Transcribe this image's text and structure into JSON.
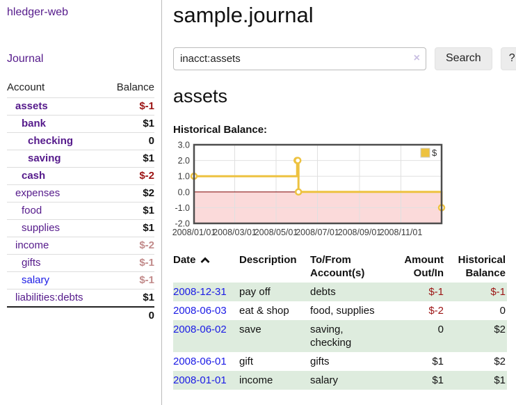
{
  "sidebar": {
    "brand": "hledger-web",
    "nav": {
      "journal_label": "Journal"
    },
    "accounts_table": {
      "headers": {
        "account": "Account",
        "balance": "Balance"
      },
      "rows": [
        {
          "name": "assets",
          "balance": "$-1",
          "level": 1,
          "bold": true,
          "balance_style": "neg"
        },
        {
          "name": "bank",
          "balance": "$1",
          "level": 2,
          "bold": true,
          "balance_style": "pos"
        },
        {
          "name": "checking",
          "balance": "0",
          "level": 3,
          "bold": true,
          "balance_style": "pos"
        },
        {
          "name": "saving",
          "balance": "$1",
          "level": 3,
          "bold": true,
          "balance_style": "pos"
        },
        {
          "name": "cash",
          "balance": "$-2",
          "level": 2,
          "bold": true,
          "balance_style": "neg"
        },
        {
          "name": "expenses",
          "balance": "$2",
          "level": 1,
          "bold": false,
          "balance_style": "pos"
        },
        {
          "name": "food",
          "balance": "$1",
          "level": 2,
          "bold": false,
          "balance_style": "pos"
        },
        {
          "name": "supplies",
          "balance": "$1",
          "level": 2,
          "bold": false,
          "balance_style": "pos"
        },
        {
          "name": "income",
          "balance": "$-2",
          "level": 1,
          "bold": false,
          "balance_style": "faded-neg"
        },
        {
          "name": "gifts",
          "balance": "$-1",
          "level": 2,
          "bold": false,
          "balance_style": "faded-neg"
        },
        {
          "name": "salary",
          "balance": "$-1",
          "level": 2,
          "bold": false,
          "balance_style": "faded-neg",
          "link_color": "blue"
        },
        {
          "name": "liabilities:debts",
          "balance": "$1",
          "level": 1,
          "bold": false,
          "balance_style": "pos"
        }
      ],
      "total": "0"
    }
  },
  "header": {
    "title": "sample.journal"
  },
  "search": {
    "query": "inacct:assets",
    "clear_icon": "×",
    "search_button_label": "Search",
    "help_button_label": "?"
  },
  "account_page": {
    "heading": "assets",
    "chart_label": "Historical Balance:"
  },
  "register": {
    "headers": {
      "date": "Date",
      "description": "Description",
      "accounts": "To/From Account(s)",
      "amount": "Amount Out/In",
      "balance": "Historical Balance"
    },
    "rows": [
      {
        "date": "2008-12-31",
        "description": "pay off",
        "accounts": "debts",
        "amount": "$-1",
        "amount_negative": true,
        "balance": "$-1",
        "balance_negative": true
      },
      {
        "date": "2008-06-03",
        "description": "eat & shop",
        "accounts": "food, supplies",
        "amount": "$-2",
        "amount_negative": true,
        "balance": "0",
        "balance_negative": false
      },
      {
        "date": "2008-06-02",
        "description": "save",
        "accounts": "saving, checking",
        "amount": "0",
        "amount_negative": false,
        "balance": "$2",
        "balance_negative": false
      },
      {
        "date": "2008-06-01",
        "description": "gift",
        "accounts": "gifts",
        "amount": "$1",
        "amount_negative": false,
        "balance": "$2",
        "balance_negative": false
      },
      {
        "date": "2008-01-01",
        "description": "income",
        "accounts": "salary",
        "amount": "$1",
        "amount_negative": false,
        "balance": "$1",
        "balance_negative": false
      }
    ]
  },
  "chart_data": {
    "type": "line",
    "title": "Historical Balance:",
    "step": true,
    "xlim_days": [
      0,
      365
    ],
    "ylim": [
      -2.0,
      3.0
    ],
    "grid": true,
    "negative_region_shaded": true,
    "legend": {
      "label": "$",
      "position": "top-right"
    },
    "x_ticks": [
      {
        "day": 0,
        "label": "2008/01/01"
      },
      {
        "day": 60,
        "label": "2008/03/01"
      },
      {
        "day": 121,
        "label": "2008/05/01"
      },
      {
        "day": 182,
        "label": "2008/07/01"
      },
      {
        "day": 244,
        "label": "2008/09/01"
      },
      {
        "day": 305,
        "label": "2008/11/01"
      }
    ],
    "y_ticks": [
      {
        "value": 3.0,
        "label": "3.0"
      },
      {
        "value": 2.0,
        "label": "2.0"
      },
      {
        "value": 1.0,
        "label": "1.0"
      },
      {
        "value": 0.0,
        "label": "0.0"
      },
      {
        "value": -1.0,
        "label": "-1.0"
      },
      {
        "value": -2.0,
        "label": "-2.0"
      }
    ],
    "series": [
      {
        "name": "$",
        "points": [
          {
            "date": "2008-01-01",
            "day": 0,
            "value": 1
          },
          {
            "date": "2008-06-01",
            "day": 152,
            "value": 2
          },
          {
            "date": "2008-06-02",
            "day": 153,
            "value": 2
          },
          {
            "date": "2008-06-03",
            "day": 154,
            "value": 0
          },
          {
            "date": "2008-12-31",
            "day": 365,
            "value": -1
          }
        ]
      }
    ]
  },
  "colors": {
    "link_purple": "#551a8b",
    "link_blue": "#1a1ae6",
    "negative_red": "#9c1414",
    "faded_red": "#c28b8b",
    "row_green": "#deecde",
    "chart_line": "#edc240",
    "chart_negative_fill": "#fbdada",
    "chart_zero_line": "#8b1a1a",
    "chart_grid": "#e0e0e0",
    "chart_frame": "#4d4d4d",
    "chart_tick_text": "#3c3c3c",
    "button_bg": "#ececec"
  }
}
